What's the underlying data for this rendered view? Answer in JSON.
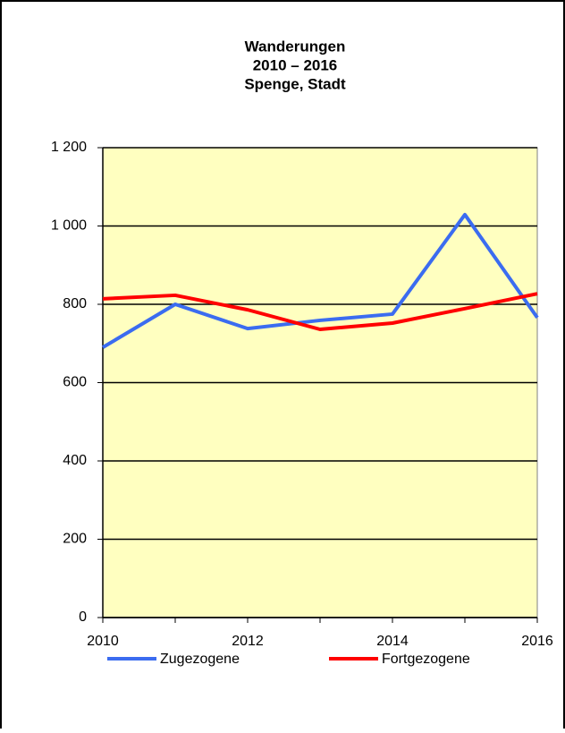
{
  "chart_data": {
    "type": "line",
    "title": [
      "Wanderungen",
      "2010 – 2016",
      "Spenge, Stadt"
    ],
    "x": [
      2010,
      2011,
      2012,
      2013,
      2014,
      2015,
      2016
    ],
    "series": [
      {
        "name": "Zugezogene",
        "color": "#3b6cf0",
        "values": [
          690,
          800,
          738,
          759,
          775,
          1029,
          766
        ]
      },
      {
        "name": "Fortgezogene",
        "color": "#ff0000",
        "values": [
          814,
          823,
          786,
          736,
          752,
          789,
          827
        ]
      }
    ],
    "xlim": [
      2010,
      2016
    ],
    "xticks": [
      2010,
      2012,
      2014,
      2016
    ],
    "ylim": [
      0,
      1200
    ],
    "yticks": [
      0,
      200,
      400,
      600,
      800,
      {
        "value": 1000,
        "label": "1 000"
      },
      {
        "value": 1200,
        "label": "1 200"
      }
    ],
    "grid": true,
    "legend": "bottom"
  }
}
